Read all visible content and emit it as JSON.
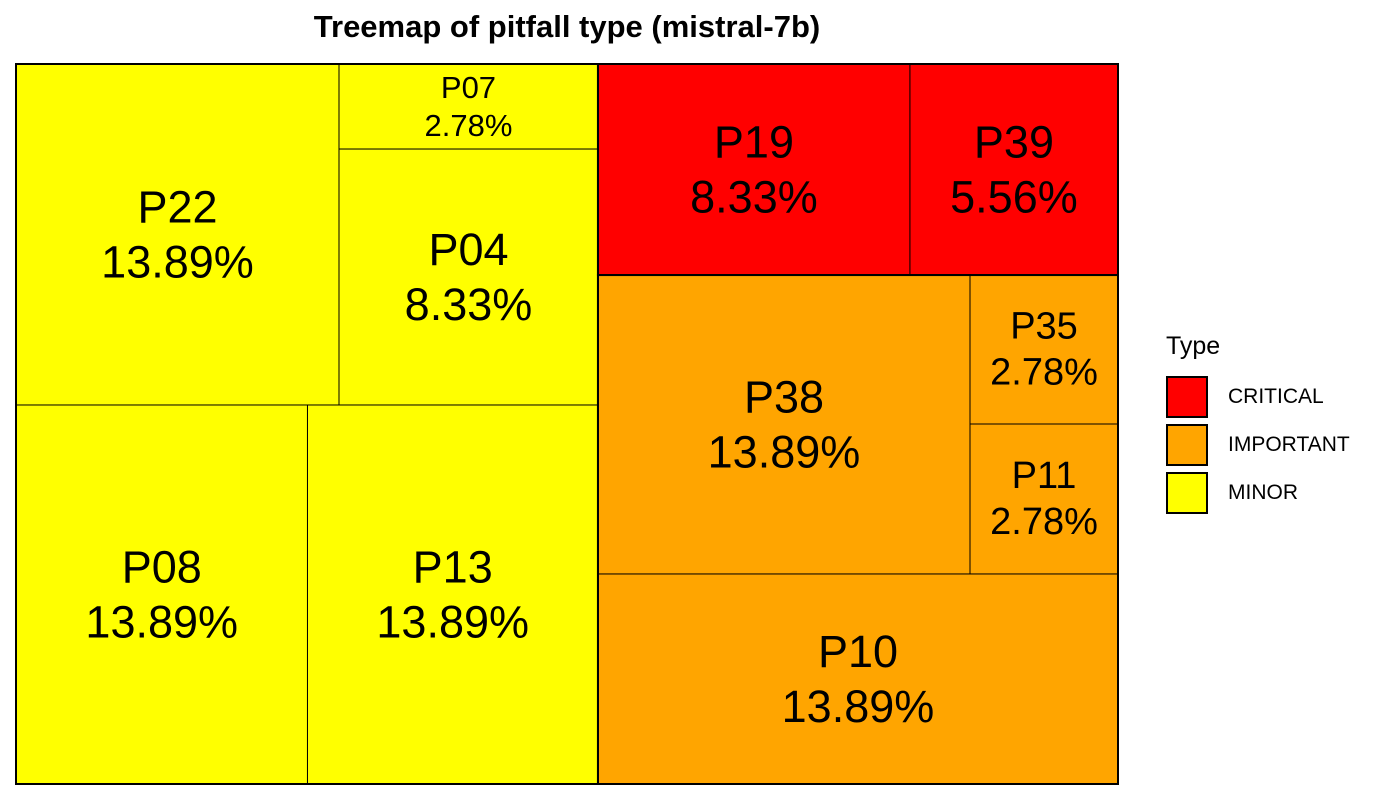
{
  "chart_data": {
    "type": "treemap",
    "title": "Treemap of pitfall type (mistral-7b)",
    "legend": {
      "title": "Type",
      "position": "right",
      "items": [
        {
          "label": "CRITICAL",
          "color": "#ff0000"
        },
        {
          "label": "IMPORTANT",
          "color": "#ffa500"
        },
        {
          "label": "MINOR",
          "color": "#ffff00"
        }
      ]
    },
    "groups": [
      {
        "type": "MINOR",
        "color": "#ffff00",
        "items": [
          {
            "name": "P22",
            "percent": 13.89,
            "label": "13.89%"
          },
          {
            "name": "P07",
            "percent": 2.78,
            "label": "2.78%"
          },
          {
            "name": "P04",
            "percent": 8.33,
            "label": "8.33%"
          },
          {
            "name": "P08",
            "percent": 13.89,
            "label": "13.89%"
          },
          {
            "name": "P13",
            "percent": 13.89,
            "label": "13.89%"
          }
        ]
      },
      {
        "type": "CRITICAL",
        "color": "#ff0000",
        "items": [
          {
            "name": "P19",
            "percent": 8.33,
            "label": "8.33%"
          },
          {
            "name": "P39",
            "percent": 5.56,
            "label": "5.56%"
          }
        ]
      },
      {
        "type": "IMPORTANT",
        "color": "#ffa500",
        "items": [
          {
            "name": "P38",
            "percent": 13.89,
            "label": "13.89%"
          },
          {
            "name": "P35",
            "percent": 2.78,
            "label": "2.78%"
          },
          {
            "name": "P11",
            "percent": 2.78,
            "label": "2.78%"
          },
          {
            "name": "P10",
            "percent": 13.89,
            "label": "13.89%"
          }
        ]
      }
    ]
  }
}
